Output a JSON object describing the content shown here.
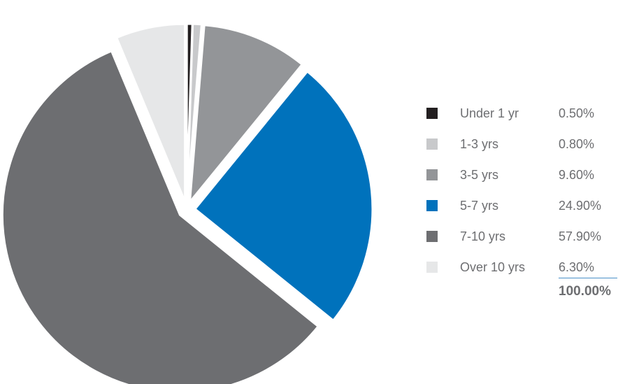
{
  "chart_data": {
    "type": "pie",
    "categories": [
      "Under 1 yr",
      "1-3 yrs",
      "3-5 yrs",
      "5-7 yrs",
      "7-10 yrs",
      "Over 10 yrs"
    ],
    "values": [
      0.5,
      0.8,
      9.6,
      24.9,
      57.9,
      6.3
    ],
    "value_labels": [
      "0.50%",
      "0.80%",
      "9.60%",
      "24.90%",
      "57.90%",
      "6.30%"
    ],
    "total_label": "100.00%",
    "colors": [
      "#231f20",
      "#c8c9cb",
      "#939598",
      "#0072bc",
      "#6d6e71",
      "#e6e7e8"
    ],
    "exploded": true,
    "legend_position": "right",
    "title": ""
  }
}
